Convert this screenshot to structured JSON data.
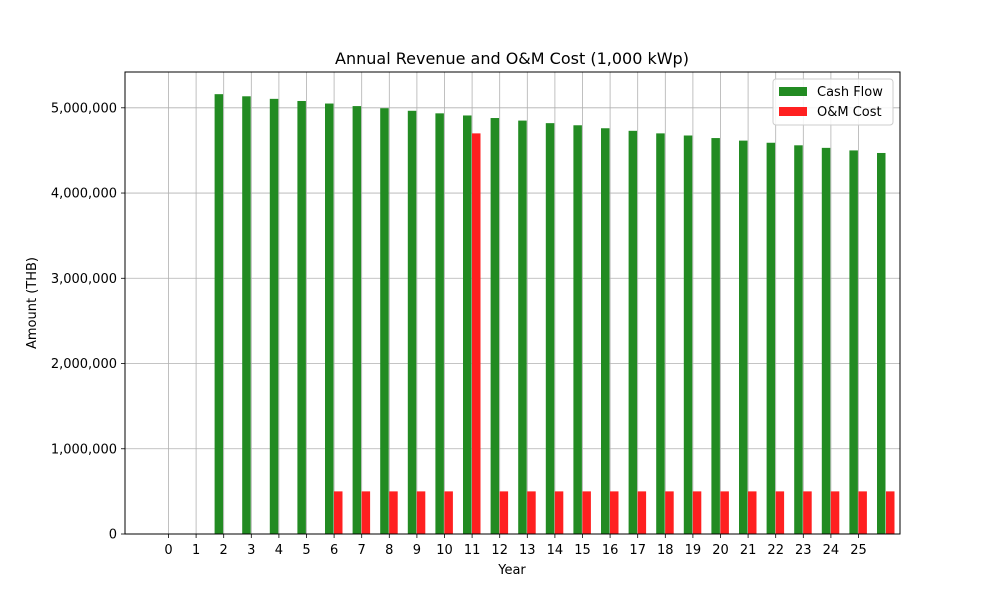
{
  "chart_data": {
    "type": "bar",
    "title": "Annual Revenue and O&M Cost (1,000 kWp)",
    "xlabel": "Year",
    "ylabel": "Amount (THB)",
    "categories": [
      "0",
      "1",
      "2",
      "3",
      "4",
      "5",
      "6",
      "7",
      "8",
      "9",
      "10",
      "11",
      "12",
      "13",
      "14",
      "15",
      "16",
      "17",
      "18",
      "19",
      "20",
      "21",
      "22",
      "23",
      "24",
      "25"
    ],
    "ylim": [
      0,
      5420000
    ],
    "yticks": [
      0,
      1000000,
      2000000,
      3000000,
      4000000,
      5000000
    ],
    "ytick_labels": [
      "0",
      "1,000,000",
      "2,000,000",
      "3,000,000",
      "4,000,000",
      "5,000,000"
    ],
    "grid": true,
    "legend_position": "top-right",
    "series": [
      {
        "name": "Cash Flow",
        "color": "#228b22",
        "values": [
          0,
          5160000,
          5135000,
          5105000,
          5080000,
          5050000,
          5020000,
          4995000,
          4965000,
          4935000,
          4910000,
          4880000,
          4850000,
          4820000,
          4795000,
          4760000,
          4730000,
          4700000,
          4675000,
          4645000,
          4615000,
          4590000,
          4560000,
          4530000,
          4500000,
          4470000
        ]
      },
      {
        "name": "O&M Cost",
        "color": "#ff2020",
        "values": [
          0,
          0,
          0,
          0,
          0,
          500000,
          500000,
          500000,
          500000,
          500000,
          4700000,
          500000,
          500000,
          500000,
          500000,
          500000,
          500000,
          500000,
          500000,
          500000,
          500000,
          500000,
          500000,
          500000,
          500000,
          500000
        ]
      }
    ]
  }
}
